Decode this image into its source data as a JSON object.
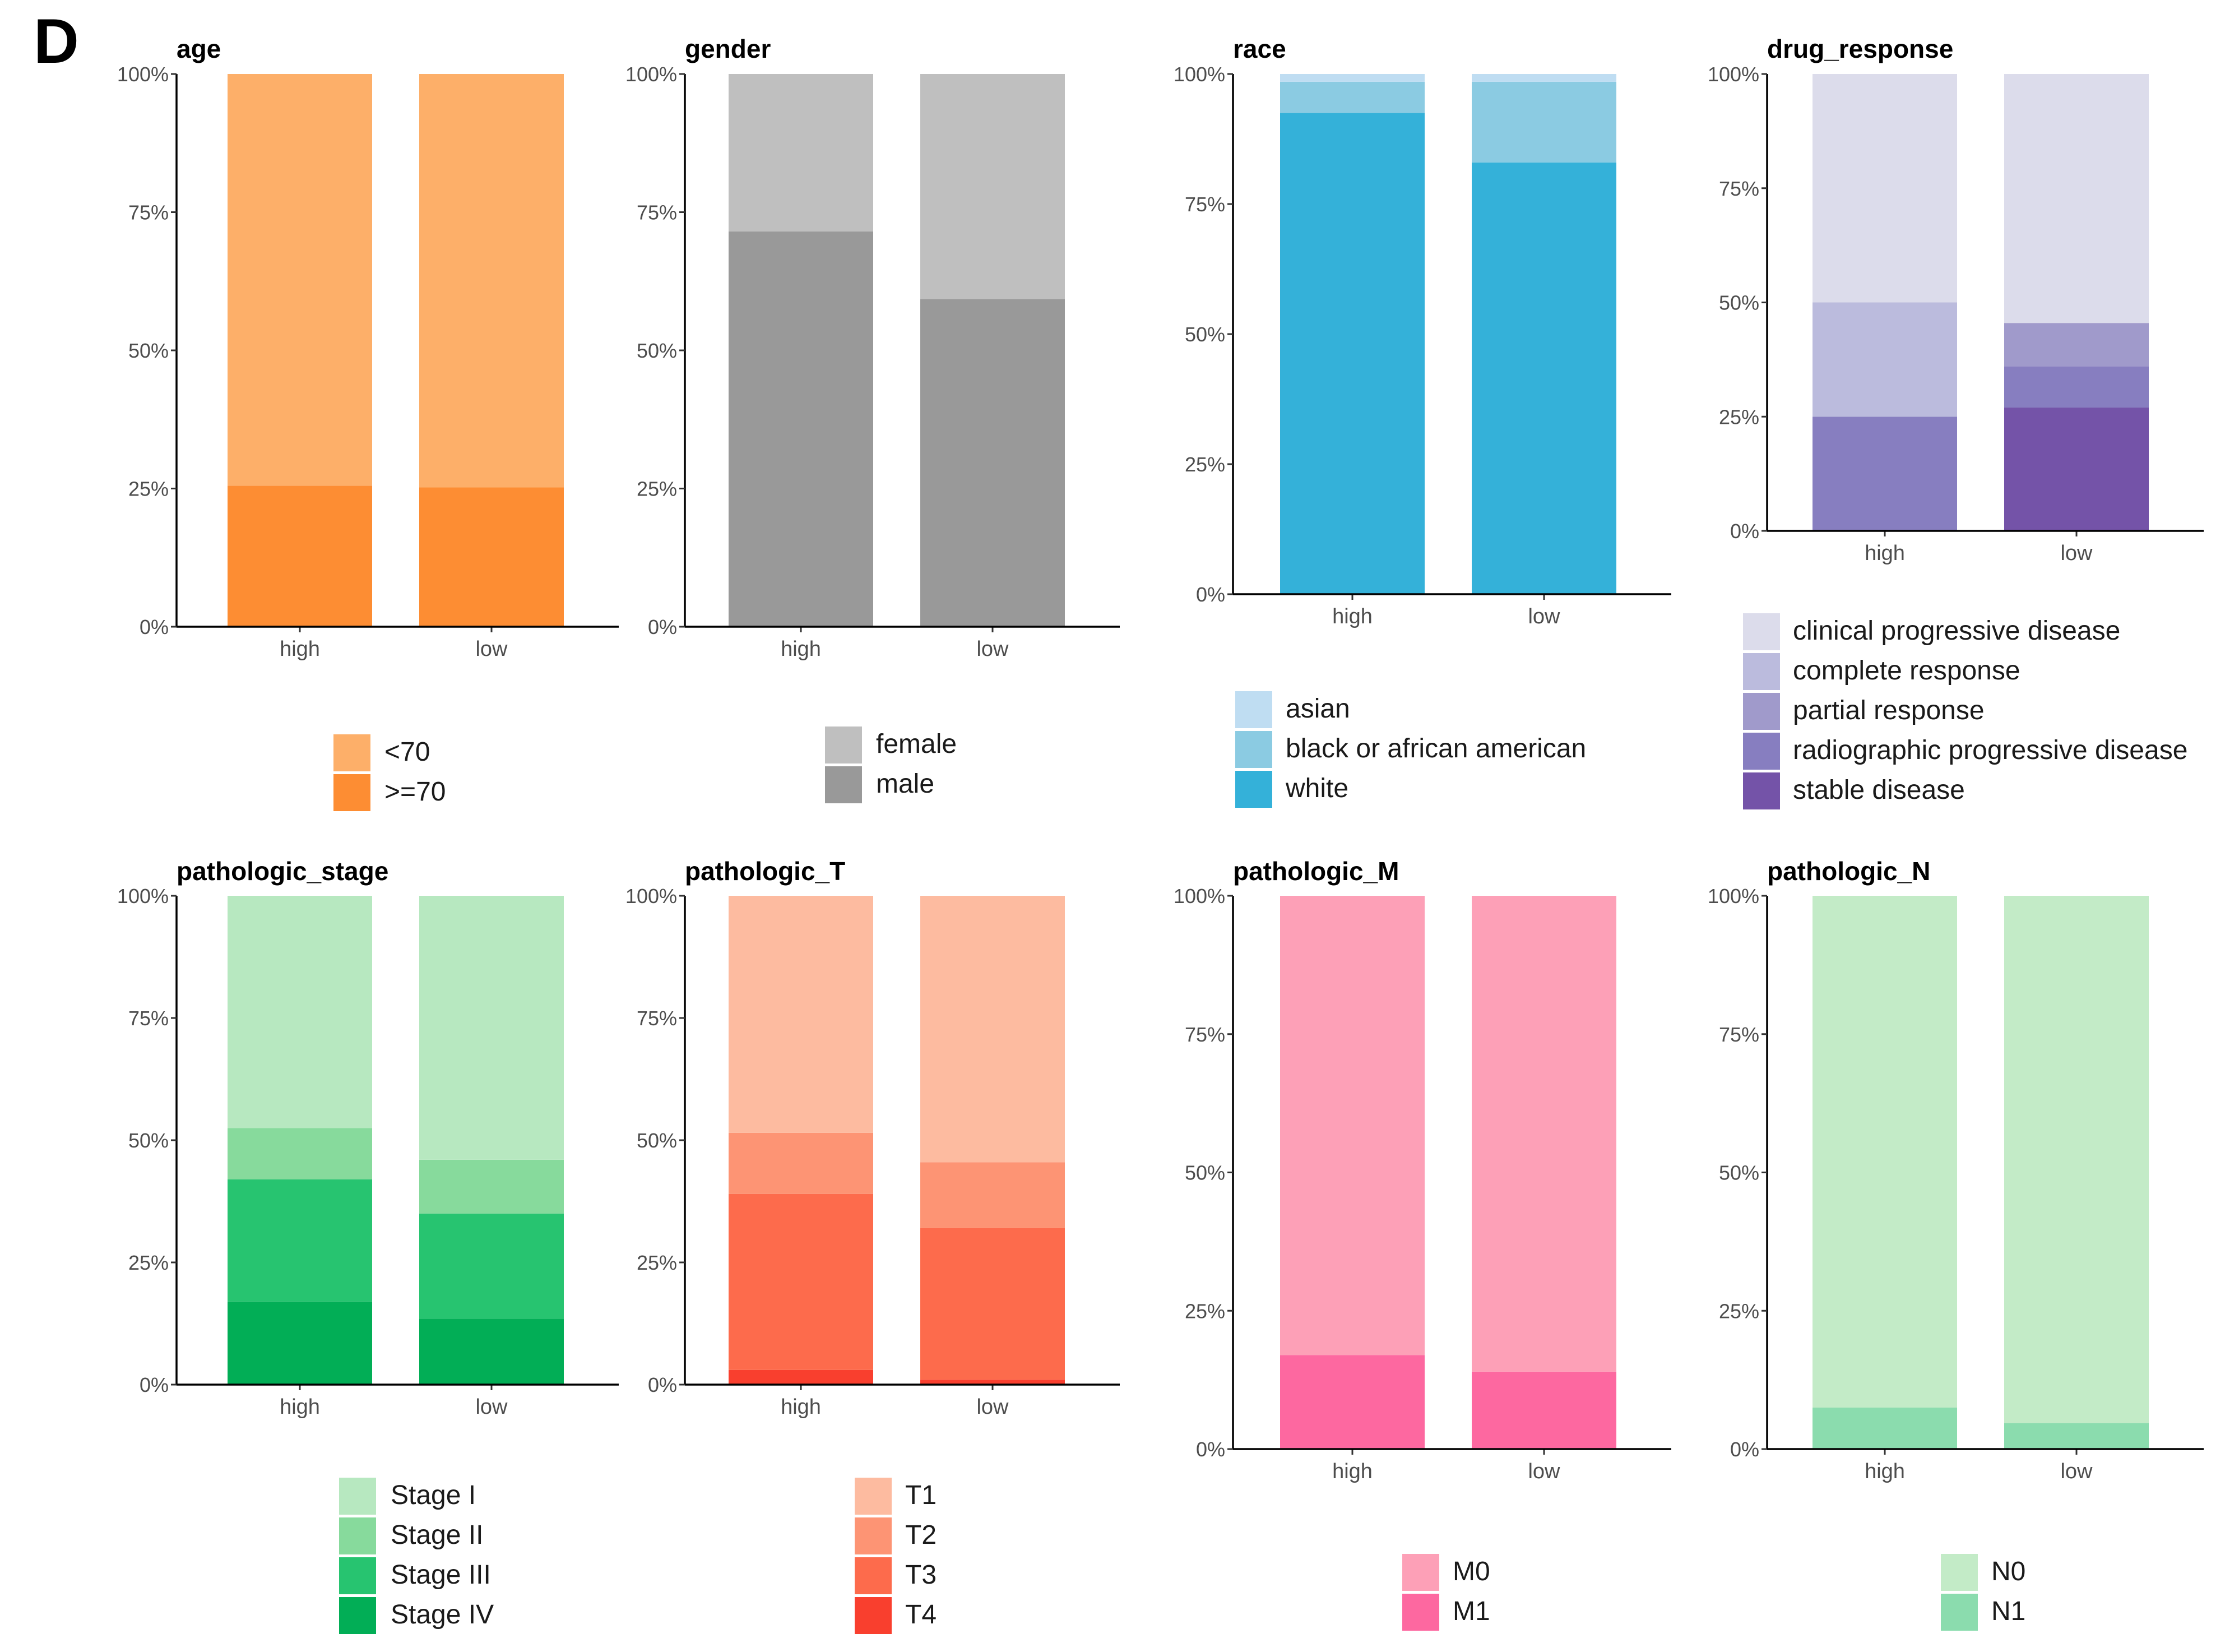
{
  "panel_label": "D",
  "chart_data": [
    {
      "type": "bar",
      "stacked": true,
      "title": "age",
      "categories": [
        "high",
        "low"
      ],
      "ylim": [
        0,
        100
      ],
      "yticks": [
        "0%",
        "25%",
        "50%",
        "75%",
        "100%"
      ],
      "series": [
        {
          "name": "<70",
          "color": "#FDAF69",
          "values": [
            74.5,
            74.8
          ]
        },
        {
          "name": ">=70",
          "color": "#FD8D33",
          "values": [
            25.5,
            25.2
          ]
        }
      ]
    },
    {
      "type": "bar",
      "stacked": true,
      "title": "gender",
      "categories": [
        "high",
        "low"
      ],
      "ylim": [
        0,
        100
      ],
      "yticks": [
        "0%",
        "25%",
        "50%",
        "75%",
        "100%"
      ],
      "series": [
        {
          "name": "female",
          "color": "#BFBFBF",
          "values": [
            28.5,
            40.7
          ]
        },
        {
          "name": "male",
          "color": "#999999",
          "values": [
            71.5,
            59.3
          ]
        }
      ]
    },
    {
      "type": "bar",
      "stacked": true,
      "title": "race",
      "categories": [
        "high",
        "low"
      ],
      "ylim": [
        0,
        100
      ],
      "yticks": [
        "0%",
        "25%",
        "50%",
        "75%",
        "100%"
      ],
      "series": [
        {
          "name": "asian",
          "color": "#BFDDF2",
          "values": [
            1.5,
            1.5
          ]
        },
        {
          "name": "black or african american",
          "color": "#8BCBE2",
          "values": [
            6.0,
            15.5
          ]
        },
        {
          "name": "white",
          "color": "#34B1D9",
          "values": [
            92.5,
            83.0
          ]
        }
      ]
    },
    {
      "type": "bar",
      "stacked": true,
      "title": "drug_response",
      "categories": [
        "high",
        "low"
      ],
      "ylim": [
        0,
        100
      ],
      "yticks": [
        "0%",
        "25%",
        "50%",
        "75%",
        "100%"
      ],
      "series": [
        {
          "name": "clinical progressive disease",
          "color": "#DCDCEB",
          "values": [
            50.0,
            54.5
          ]
        },
        {
          "name": "complete response",
          "color": "#BBBBDD",
          "values": [
            25.0,
            0
          ]
        },
        {
          "name": "partial response",
          "color": "#A09ACB",
          "values": [
            0,
            9.5
          ]
        },
        {
          "name": "radiographic progressive disease",
          "color": "#877EC0",
          "values": [
            25.0,
            9.0
          ]
        },
        {
          "name": "stable disease",
          "color": "#7453A8",
          "values": [
            0,
            27.0
          ]
        }
      ]
    },
    {
      "type": "bar",
      "stacked": true,
      "title": "pathologic_stage",
      "categories": [
        "high",
        "low"
      ],
      "ylim": [
        0,
        100
      ],
      "yticks": [
        "0%",
        "25%",
        "50%",
        "75%",
        "100%"
      ],
      "series": [
        {
          "name": "Stage I",
          "color": "#B7E8C0",
          "values": [
            47.5,
            54.0
          ]
        },
        {
          "name": "Stage II",
          "color": "#87DA9C",
          "values": [
            10.5,
            11.0
          ]
        },
        {
          "name": "Stage III",
          "color": "#27C470",
          "values": [
            25.0,
            21.5
          ]
        },
        {
          "name": "Stage IV",
          "color": "#02AE56",
          "values": [
            17.0,
            13.5
          ]
        }
      ]
    },
    {
      "type": "bar",
      "stacked": true,
      "title": "pathologic_T",
      "categories": [
        "high",
        "low"
      ],
      "ylim": [
        0,
        100
      ],
      "yticks": [
        "0%",
        "25%",
        "50%",
        "75%",
        "100%"
      ],
      "series": [
        {
          "name": "T1",
          "color": "#FDBBA0",
          "values": [
            48.5,
            54.5
          ]
        },
        {
          "name": "T2",
          "color": "#FD9474",
          "values": [
            12.5,
            13.5
          ]
        },
        {
          "name": "T3",
          "color": "#FD6B4C",
          "values": [
            36.0,
            31.0
          ]
        },
        {
          "name": "T4",
          "color": "#F93F2E",
          "values": [
            3.0,
            1.0
          ]
        }
      ]
    },
    {
      "type": "bar",
      "stacked": true,
      "title": "pathologic_M",
      "categories": [
        "high",
        "low"
      ],
      "ylim": [
        0,
        100
      ],
      "yticks": [
        "0%",
        "25%",
        "50%",
        "75%",
        "100%"
      ],
      "series": [
        {
          "name": "M0",
          "color": "#FDA0B7",
          "values": [
            83.0,
            86.0
          ]
        },
        {
          "name": "M1",
          "color": "#FD68A0",
          "values": [
            17.0,
            14.0
          ]
        }
      ]
    },
    {
      "type": "bar",
      "stacked": true,
      "title": "pathologic_N",
      "categories": [
        "high",
        "low"
      ],
      "ylim": [
        0,
        100
      ],
      "yticks": [
        "0%",
        "25%",
        "50%",
        "75%",
        "100%"
      ],
      "series": [
        {
          "name": "N0",
          "color": "#C3EBC7",
          "values": [
            92.5,
            95.3
          ]
        },
        {
          "name": "N1",
          "color": "#8BDCAE",
          "values": [
            7.5,
            4.7
          ]
        }
      ]
    }
  ]
}
